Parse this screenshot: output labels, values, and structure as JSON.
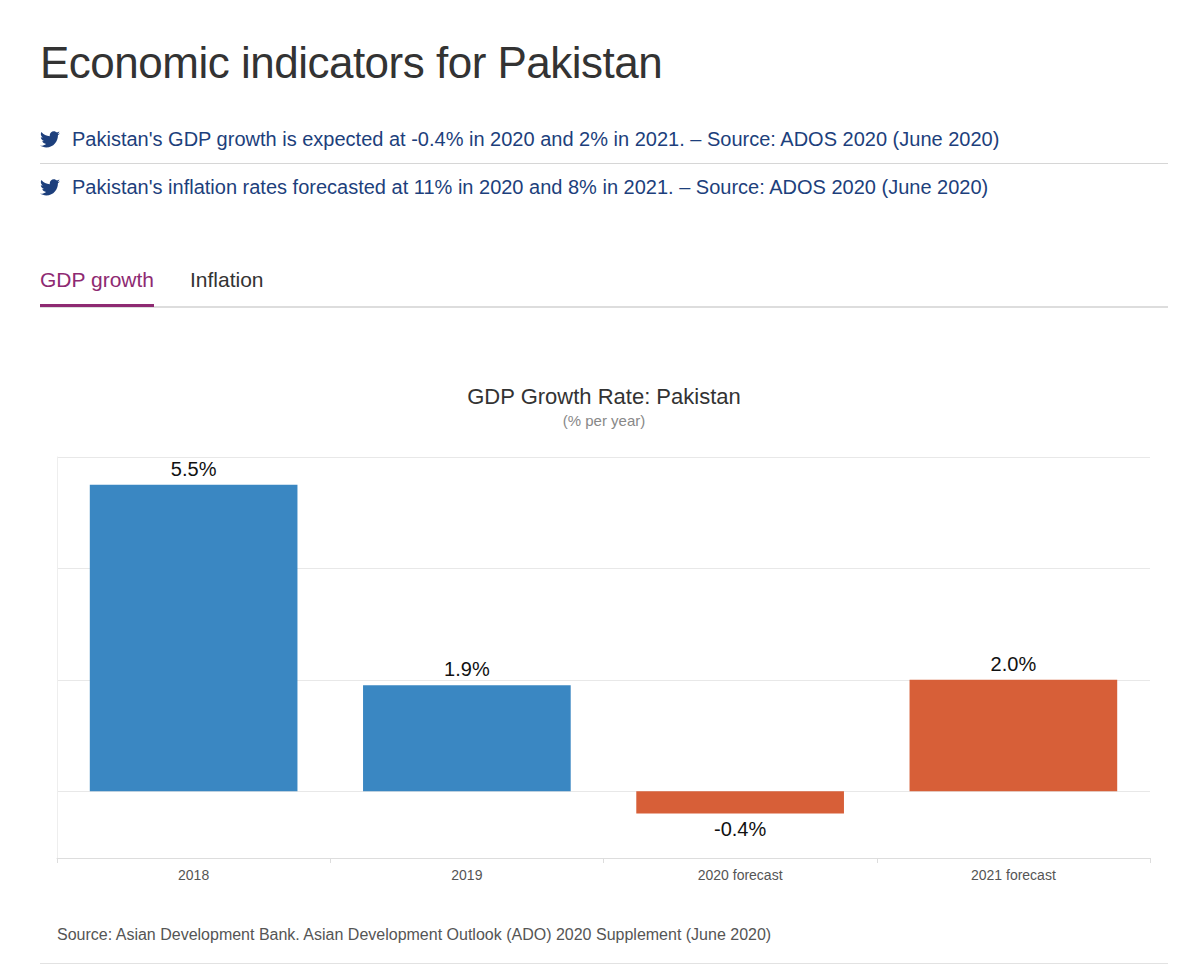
{
  "page": {
    "heading": "Economic indicators for Pakistan",
    "tweets": [
      "Pakistan's GDP growth is expected at -0.4% in 2020 and 2% in 2021. – Source: ADOS 2020 (June 2020)",
      "Pakistan's inflation rates forecasted at 11% in 2020 and 8% in 2021. – Source: ADOS 2020 (June 2020)"
    ],
    "tabs": [
      "GDP growth",
      "Inflation"
    ]
  },
  "chart_data": {
    "type": "bar",
    "title": "GDP Growth Rate: Pakistan",
    "subtitle": "(% per year)",
    "categories": [
      "2018",
      "2019",
      "2020 forecast",
      "2021 forecast"
    ],
    "values": [
      5.5,
      1.9,
      -0.4,
      2.0
    ],
    "value_labels": [
      "5.5%",
      "1.9%",
      "-0.4%",
      "2.0%"
    ],
    "colors": [
      "#3a87c2",
      "#3a87c2",
      "#d75f38",
      "#d75f38"
    ],
    "ylim": [
      -1.2,
      6
    ],
    "yticks": [
      0,
      2,
      4,
      6
    ],
    "grid": true,
    "data_labels": true,
    "tick_labels": "x",
    "source": "Source: Asian Development Bank. Asian Development Outlook (ADO) 2020 Supplement (June 2020)"
  }
}
